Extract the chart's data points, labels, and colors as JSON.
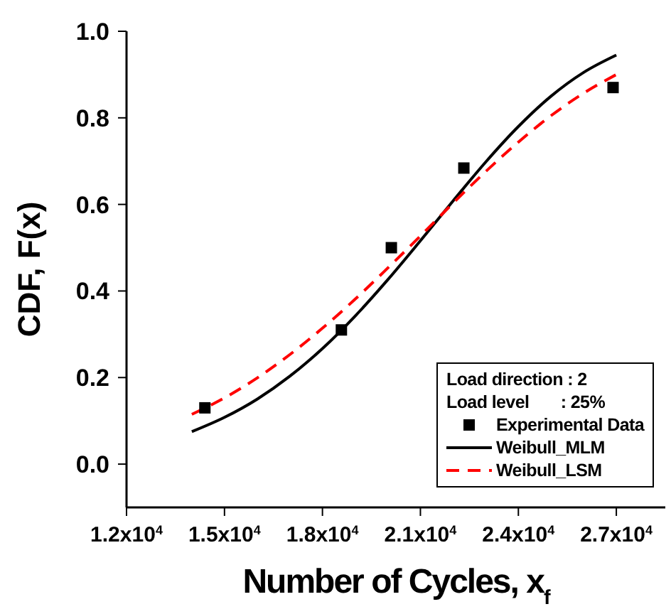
{
  "chart_data": {
    "type": "line",
    "xlabel": "Number of Cycles, x$_{f}$",
    "ylabel": "CDF, F(x)",
    "annotations": [
      "Load direction : 2",
      "Load level       : 25%"
    ],
    "xlim": [
      12000,
      28500
    ],
    "ylim": [
      -0.1,
      1.0
    ],
    "xticks": [
      {
        "value": 12000,
        "label": "1.2x10$^{4}$"
      },
      {
        "value": 15000,
        "label": "1.5x10$^{4}$"
      },
      {
        "value": 18000,
        "label": "1.8x10$^{4}$"
      },
      {
        "value": 21000,
        "label": "2.1x10$^{4}$"
      },
      {
        "value": 24000,
        "label": "2.4x10$^{4}$"
      },
      {
        "value": 27000,
        "label": "2.7x10$^{4}$"
      }
    ],
    "yticks": [
      {
        "value": 0,
        "label": "0.0"
      },
      {
        "value": 0.2,
        "label": "0.2"
      },
      {
        "value": 0.4,
        "label": "0.4"
      },
      {
        "value": 0.6,
        "label": "0.6"
      },
      {
        "value": 0.8,
        "label": "0.8"
      },
      {
        "value": 1.0,
        "label": "1.0"
      }
    ],
    "grid": false,
    "legend": "bottom right",
    "series": [
      {
        "name": "Experimental Data",
        "type": "scatter",
        "marker": "square",
        "color": "#000000",
        "x": [
          14400,
          18580,
          20110,
          22330,
          26900
        ],
        "values": [
          0.13,
          0.31,
          0.5,
          0.684,
          0.87
        ]
      },
      {
        "name": "Weibull_MLM",
        "marker": "none",
        "line_style": "solid",
        "color": "#000000",
        "x": [
          14000,
          15000,
          16000,
          17000,
          18000,
          19000,
          20000,
          21000,
          22000,
          23000,
          24000,
          25000,
          26000,
          27000
        ],
        "values": [
          0.075,
          0.108,
          0.15,
          0.203,
          0.267,
          0.342,
          0.426,
          0.516,
          0.608,
          0.698,
          0.78,
          0.85,
          0.905,
          0.945
        ]
      },
      {
        "name": "Weibull_LSM",
        "marker": "none",
        "line_style": "dashed",
        "color": "#ff0000",
        "x": [
          14000,
          15000,
          16000,
          17000,
          18000,
          19000,
          20000,
          21000,
          22000,
          23000,
          24000,
          25000,
          26000,
          27000
        ],
        "values": [
          0.115,
          0.153,
          0.199,
          0.253,
          0.314,
          0.381,
          0.453,
          0.527,
          0.603,
          0.676,
          0.744,
          0.805,
          0.857,
          0.9
        ]
      }
    ]
  }
}
